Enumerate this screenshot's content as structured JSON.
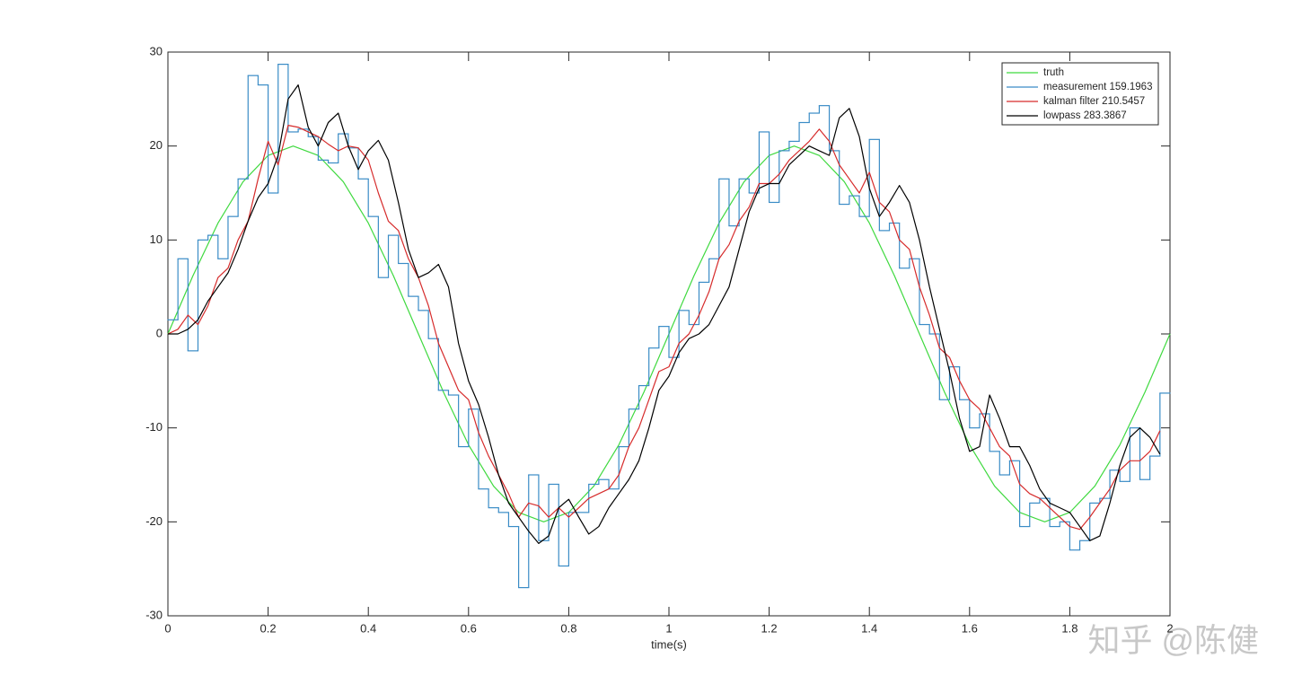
{
  "chart_data": {
    "type": "line",
    "xlabel": "time(s)",
    "xlim": [
      0,
      2
    ],
    "ylim": [
      -30,
      30
    ],
    "xticks": [
      0,
      0.2,
      0.4,
      0.6,
      0.8,
      1,
      1.2,
      1.4,
      1.6,
      1.8,
      2
    ],
    "yticks": [
      -30,
      -20,
      -10,
      0,
      10,
      20,
      30
    ],
    "legend": "northeast",
    "watermark": "知乎 @陈健",
    "x": [
      0,
      0.02,
      0.04,
      0.06,
      0.08,
      0.1,
      0.12,
      0.14,
      0.16,
      0.18,
      0.2,
      0.22,
      0.24,
      0.26,
      0.28,
      0.3,
      0.32,
      0.34,
      0.36,
      0.38,
      0.4,
      0.42,
      0.44,
      0.46,
      0.48,
      0.5,
      0.52,
      0.54,
      0.56,
      0.58,
      0.6,
      0.62,
      0.64,
      0.66,
      0.68,
      0.7,
      0.72,
      0.74,
      0.76,
      0.78,
      0.8,
      0.82,
      0.84,
      0.86,
      0.88,
      0.9,
      0.92,
      0.94,
      0.96,
      0.98,
      1,
      1.02,
      1.04,
      1.06,
      1.08,
      1.1,
      1.12,
      1.14,
      1.16,
      1.18,
      1.2,
      1.22,
      1.24,
      1.26,
      1.28,
      1.3,
      1.32,
      1.34,
      1.36,
      1.38,
      1.4,
      1.42,
      1.44,
      1.46,
      1.48,
      1.5,
      1.52,
      1.54,
      1.56,
      1.58,
      1.6,
      1.62,
      1.64,
      1.66,
      1.68,
      1.7,
      1.72,
      1.74,
      1.76,
      1.78,
      1.8,
      1.82,
      1.84,
      1.86,
      1.88,
      1.9,
      1.92,
      1.94,
      1.96,
      1.98
    ],
    "series": [
      {
        "name": "truth",
        "color": "#3fd93f",
        "x": [
          0,
          0.05,
          0.1,
          0.15,
          0.2,
          0.25,
          0.3,
          0.35,
          0.4,
          0.45,
          0.5,
          0.55,
          0.6,
          0.65,
          0.7,
          0.75,
          0.8,
          0.85,
          0.9,
          0.95,
          1,
          1.05,
          1.1,
          1.15,
          1.2,
          1.25,
          1.3,
          1.35,
          1.4,
          1.45,
          1.5,
          1.55,
          1.6,
          1.65,
          1.7,
          1.75,
          1.8,
          1.85,
          1.9,
          1.95,
          2
        ],
        "values": [
          0,
          6.2,
          11.8,
          16.2,
          19,
          20,
          19,
          16.2,
          11.8,
          6.2,
          0,
          -6.2,
          -11.8,
          -16.2,
          -19,
          -20,
          -19,
          -16.2,
          -11.8,
          -6.2,
          0,
          6.2,
          11.8,
          16.2,
          19,
          20,
          19,
          16.2,
          11.8,
          6.2,
          0,
          -6.2,
          -11.8,
          -16.2,
          -19,
          -20,
          -19,
          -16.2,
          -11.8,
          -6.2,
          0
        ]
      },
      {
        "name": "measurement 159.1963",
        "color": "#3a8cc6",
        "style": "stairs",
        "values": [
          1.5,
          8,
          -1.8,
          10,
          10.5,
          8,
          12.5,
          16.5,
          27.5,
          26.5,
          15,
          28.7,
          21.5,
          21.8,
          21,
          18.5,
          18.2,
          21.3,
          19.8,
          16.5,
          12.5,
          6,
          10.5,
          7.5,
          4,
          2.5,
          -0.5,
          -6,
          -6.5,
          -12,
          -8,
          -16.5,
          -18.5,
          -19,
          -20.5,
          -27,
          -15,
          -22,
          -16,
          -24.7,
          -19,
          -19,
          -16,
          -15.5,
          -16.5,
          -12,
          -8,
          -5.5,
          -1.5,
          0.8,
          -2.5,
          2.5,
          1,
          5.5,
          8,
          16.5,
          11.5,
          16.5,
          15,
          21.5,
          14,
          19.5,
          20.5,
          22.5,
          23.5,
          24.3,
          19.5,
          13.8,
          14.7,
          12.5,
          20.7,
          11,
          11.8,
          7,
          8,
          1,
          0,
          -7,
          -3.5,
          -7,
          -10,
          -8.5,
          -12.5,
          -15,
          -13.5,
          -20.5,
          -18,
          -17.5,
          -20.5,
          -20,
          -23,
          -22,
          -18,
          -17.5,
          -14.5,
          -15.7,
          -10,
          -15.5,
          -13,
          -6.3
        ]
      },
      {
        "name": "kalman filter 210.5457",
        "color": "#d62b2b",
        "values": [
          0,
          0.5,
          2,
          1,
          3,
          6,
          7,
          10,
          12,
          16.5,
          20.5,
          18,
          22.2,
          22,
          21.5,
          21,
          20.2,
          19.5,
          20,
          19.8,
          18.5,
          15,
          12,
          11,
          8,
          6,
          3,
          -1,
          -3.5,
          -6,
          -7,
          -10.5,
          -13,
          -15,
          -17,
          -19.5,
          -18,
          -18.3,
          -19.5,
          -18.5,
          -19.5,
          -18.5,
          -17.5,
          -17,
          -16.5,
          -15,
          -12,
          -10,
          -7,
          -4,
          -3.5,
          -1,
          0,
          2,
          4.5,
          8,
          9.5,
          12,
          13.5,
          16,
          16,
          17,
          18.5,
          19.5,
          20.5,
          21.8,
          20.5,
          18,
          16.5,
          15,
          17.2,
          14,
          13,
          10,
          9,
          5,
          2,
          -1.5,
          -2.5,
          -5,
          -7,
          -8,
          -10,
          -12,
          -13,
          -16,
          -17,
          -17.5,
          -18.5,
          -19.5,
          -20.5,
          -20.8,
          -19.5,
          -18,
          -16.5,
          -14.5,
          -13.5,
          -13.5,
          -12.5,
          -10.3
        ]
      },
      {
        "name": "lowpass 283.3867",
        "color": "#000000",
        "values": [
          0,
          0,
          0.5,
          1.5,
          3.5,
          5,
          6.5,
          9,
          12,
          14.5,
          16,
          19,
          25,
          26.5,
          22,
          20,
          22.5,
          23.5,
          20,
          17.5,
          19.5,
          20.6,
          18.5,
          14,
          9,
          6,
          6.5,
          7.4,
          5,
          -1,
          -5,
          -7.5,
          -11,
          -15,
          -18,
          -19.5,
          -21,
          -22.3,
          -21.5,
          -18.5,
          -17.6,
          -19.5,
          -21.3,
          -20.5,
          -18.5,
          -17,
          -15.5,
          -13.5,
          -10,
          -6,
          -4.5,
          -2,
          -0.5,
          0,
          1,
          3,
          5,
          9,
          13,
          15.5,
          16,
          16,
          18,
          19,
          20,
          19.5,
          19,
          23,
          24,
          21,
          15.5,
          12.5,
          14,
          15.8,
          14,
          10,
          5,
          0.5,
          -4,
          -9,
          -12.5,
          -12,
          -6.5,
          -9,
          -12,
          -12,
          -14,
          -16.5,
          -18,
          -18.5,
          -19,
          -20.5,
          -22,
          -21.5,
          -18,
          -14,
          -11,
          -10,
          -11,
          -12.8
        ]
      }
    ]
  }
}
